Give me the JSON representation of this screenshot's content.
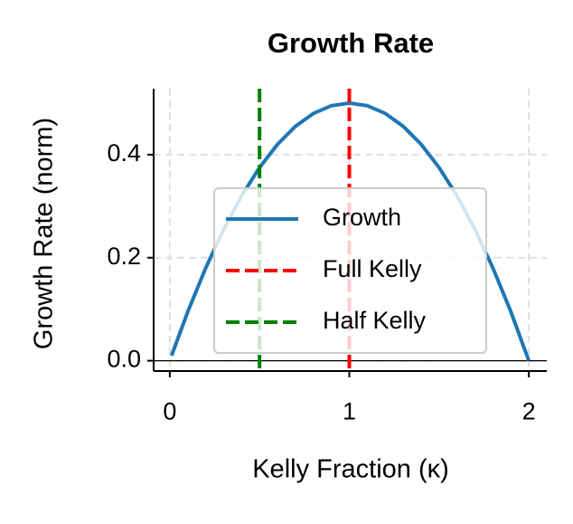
{
  "chart_data": {
    "type": "line",
    "title": "Growth Rate",
    "xlabel": "Kelly Fraction (κ)",
    "ylabel": "Growth Rate (norm)",
    "x": [
      0.01,
      0.1,
      0.2,
      0.3,
      0.4,
      0.5,
      0.6,
      0.7,
      0.8,
      0.9,
      1.0,
      1.1,
      1.2,
      1.3,
      1.4,
      1.5,
      1.6,
      1.7,
      1.8,
      1.9,
      2.0
    ],
    "series": [
      {
        "name": "Growth",
        "color": "#1f77b4",
        "values": [
          0.01,
          0.095,
          0.18,
          0.255,
          0.32,
          0.375,
          0.42,
          0.455,
          0.48,
          0.495,
          0.5,
          0.495,
          0.48,
          0.455,
          0.42,
          0.375,
          0.32,
          0.255,
          0.18,
          0.095,
          0
        ]
      }
    ],
    "vlines": [
      {
        "name": "Full Kelly",
        "x": 1,
        "color": "#ff0000"
      },
      {
        "name": "Half Kelly",
        "x": 0.5,
        "color": "#008000"
      }
    ],
    "hline": 0,
    "xlim": [
      -0.09,
      2.1
    ],
    "ylim": [
      -0.02,
      0.528
    ],
    "xticks": [
      0,
      1,
      2
    ],
    "yticks": [
      {
        "value": 0,
        "label": "0.0"
      },
      0.2,
      0.4
    ],
    "grid": true,
    "legend": "center"
  }
}
